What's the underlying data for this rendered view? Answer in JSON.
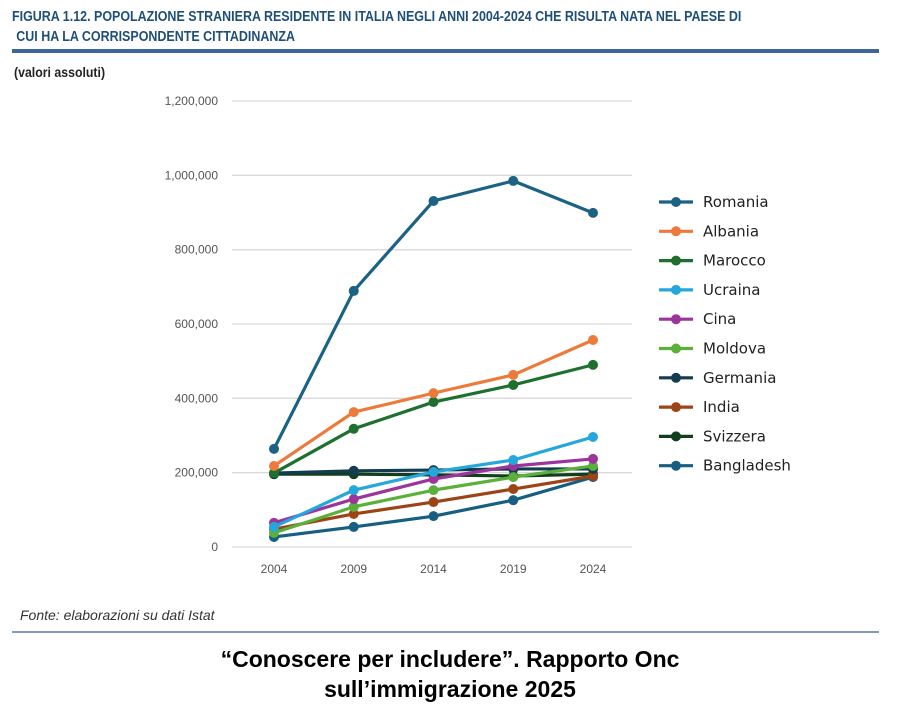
{
  "header": {
    "title_line1": "FIGURA 1.12. POPOLAZIONE STRANIERA RESIDENTE IN ITALIA NEGLI ANNI 2004-2024 CHE RISULTA NATA NEL PAESE DI",
    "title_line2": "CUI HA LA CORRISPONDENTE CITTADINANZA",
    "subtitle": "(valori assoluti)"
  },
  "footer": {
    "source": "Fonte: elaborazioni su dati Istat",
    "caption_line1": "“Conoscere per includere”. Rapporto Onc",
    "caption_line2": "sull’immigrazione 2025"
  },
  "chart_data": {
    "type": "line",
    "title": "FIGURA 1.12. POPOLAZIONE STRANIERA RESIDENTE IN ITALIA NEGLI ANNI 2004-2024 CHE RISULTA NATA NEL PAESE DI CUI HA LA CORRISPONDENTE CITTADINANZA",
    "ylabel": "(valori assoluti)",
    "xlabel": "",
    "x": [
      "2004",
      "2009",
      "2014",
      "2019",
      "2024"
    ],
    "ylim": [
      0,
      1200000
    ],
    "yticks": [
      0,
      200000,
      400000,
      600000,
      800000,
      1000000,
      1200000
    ],
    "ytick_labels": [
      "0",
      "200,000",
      "400,000",
      "600,000",
      "800,000",
      "1,000,000",
      "1,200,000"
    ],
    "grid": "horizontal",
    "legend": "right",
    "series": [
      {
        "name": "Romania",
        "color": "#1b6285",
        "values": [
          264000,
          689000,
          931000,
          985000,
          899000
        ]
      },
      {
        "name": "Albania",
        "color": "#ec7a3b",
        "values": [
          218000,
          363000,
          414000,
          463000,
          557000
        ]
      },
      {
        "name": "Marocco",
        "color": "#1f6f2e",
        "values": [
          199000,
          318000,
          390000,
          436000,
          490000
        ]
      },
      {
        "name": "Ucraina",
        "color": "#25a7dc",
        "values": [
          54000,
          153000,
          202000,
          234000,
          296000
        ]
      },
      {
        "name": "Cina",
        "color": "#9b349b",
        "values": [
          65000,
          129000,
          183000,
          218000,
          237000
        ]
      },
      {
        "name": "Moldova",
        "color": "#5ab03a",
        "values": [
          38000,
          108000,
          153000,
          188000,
          218000
        ]
      },
      {
        "name": "Germania",
        "color": "#143c50",
        "values": [
          199000,
          205000,
          207000,
          210000,
          210000
        ]
      },
      {
        "name": "India",
        "color": "#9c4416",
        "values": [
          48000,
          89000,
          121000,
          156000,
          191000
        ]
      },
      {
        "name": "Svizzera",
        "color": "#103f1e",
        "values": [
          196000,
          196000,
          194000,
          191000,
          196000
        ]
      },
      {
        "name": "Bangladesh",
        "color": "#165f82",
        "values": [
          27000,
          54000,
          83000,
          126000,
          188000
        ]
      }
    ]
  }
}
